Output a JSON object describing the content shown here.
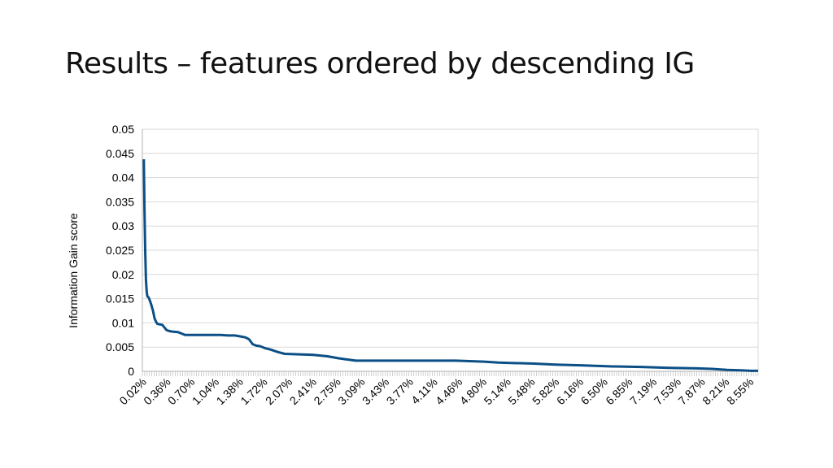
{
  "slide": {
    "title": "Results – features ordered by descending IG"
  },
  "colors": {
    "line": "#0b4f86",
    "grid": "#d9d9d9",
    "axis": "#b3b3b3"
  },
  "chart_data": {
    "type": "line",
    "title": "",
    "xlabel": "",
    "ylabel": "Information Gain score",
    "ylim": [
      0,
      0.05
    ],
    "yticks": [
      "0",
      "0.005",
      "0.01",
      "0.015",
      "0.02",
      "0.025",
      "0.03",
      "0.035",
      "0.04",
      "0.045",
      "0.05"
    ],
    "grid": true,
    "legend": "none",
    "x_tick_labels": [
      "0.02%",
      "0.36%",
      "0.70%",
      "1.04%",
      "1.38%",
      "1.72%",
      "2.07%",
      "2.41%",
      "2.75%",
      "3.09%",
      "3.43%",
      "3.77%",
      "4.11%",
      "4.46%",
      "4.80%",
      "5.14%",
      "5.48%",
      "5.82%",
      "6.16%",
      "6.50%",
      "6.85%",
      "7.19%",
      "7.53%",
      "7.87%",
      "8.21%",
      "8.55%"
    ],
    "series": [
      {
        "x": [
          0.02,
          0.03,
          0.04,
          0.05,
          0.06,
          0.07,
          0.09,
          0.12,
          0.15,
          0.17,
          0.19,
          0.21,
          0.24,
          0.28,
          0.34,
          0.38,
          0.42,
          0.5,
          0.6,
          0.7,
          0.8,
          0.9,
          1.0,
          1.1,
          1.2,
          1.3,
          1.38,
          1.45,
          1.5,
          1.55,
          1.6,
          1.65,
          1.72,
          1.8,
          1.9,
          2.0,
          2.2,
          2.4,
          2.6,
          2.75,
          2.85,
          3.0,
          3.2,
          3.5,
          4.0,
          4.4,
          4.6,
          4.8,
          5.0,
          5.5,
          5.8,
          6.2,
          6.6,
          7.0,
          7.4,
          7.8,
          8.0,
          8.21,
          8.4,
          8.55,
          8.65
        ],
        "values": [
          0.0438,
          0.0335,
          0.025,
          0.019,
          0.0165,
          0.0155,
          0.0152,
          0.014,
          0.0125,
          0.011,
          0.0103,
          0.0098,
          0.0097,
          0.0096,
          0.0085,
          0.0083,
          0.0082,
          0.0081,
          0.0075,
          0.0075,
          0.0075,
          0.0075,
          0.0075,
          0.0075,
          0.0074,
          0.0074,
          0.0072,
          0.007,
          0.0066,
          0.0056,
          0.0053,
          0.0052,
          0.0048,
          0.0045,
          0.004,
          0.0036,
          0.0035,
          0.0034,
          0.0031,
          0.0027,
          0.0025,
          0.0022,
          0.0022,
          0.0022,
          0.0022,
          0.0022,
          0.0021,
          0.002,
          0.0018,
          0.0016,
          0.0014,
          0.0012,
          0.001,
          0.0009,
          0.0007,
          0.0006,
          0.0005,
          0.0003,
          0.0002,
          0.0001,
          0.0001
        ]
      }
    ]
  }
}
